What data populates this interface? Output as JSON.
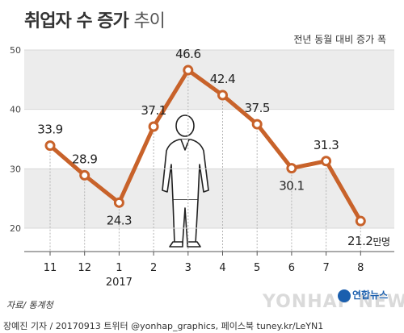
{
  "header": {
    "title_main": "취업자 수 증가",
    "title_light": "추이",
    "subtitle": "전년 동월 대비 증가 폭"
  },
  "chart_data": {
    "type": "line",
    "categories": [
      "11",
      "12",
      "1",
      "2",
      "3",
      "4",
      "5",
      "6",
      "7",
      "8"
    ],
    "year_label": "2017",
    "values": [
      33.9,
      28.9,
      24.3,
      37.1,
      46.6,
      42.4,
      37.5,
      30.1,
      31.3,
      21.2
    ],
    "value_labels": [
      "33.9",
      "28.9",
      "24.3",
      "37.1",
      "46.6",
      "42.4",
      "37.5",
      "30.1",
      "31.3",
      "21.2"
    ],
    "last_unit": "만명",
    "yticks": [
      20,
      30,
      40,
      50
    ],
    "ylim": [
      20,
      50
    ],
    "line_color": "#c8622a",
    "band_color": "#ececec",
    "grid": true
  },
  "footer": {
    "source": "자료/ 통계청",
    "credit": "장예진 기자 / 20170913 트위터 @yonhap_graphics, 페이스북 tuney.kr/LeYN1",
    "logo": "연합뉴스",
    "watermark": "YONHAP NEWS"
  }
}
